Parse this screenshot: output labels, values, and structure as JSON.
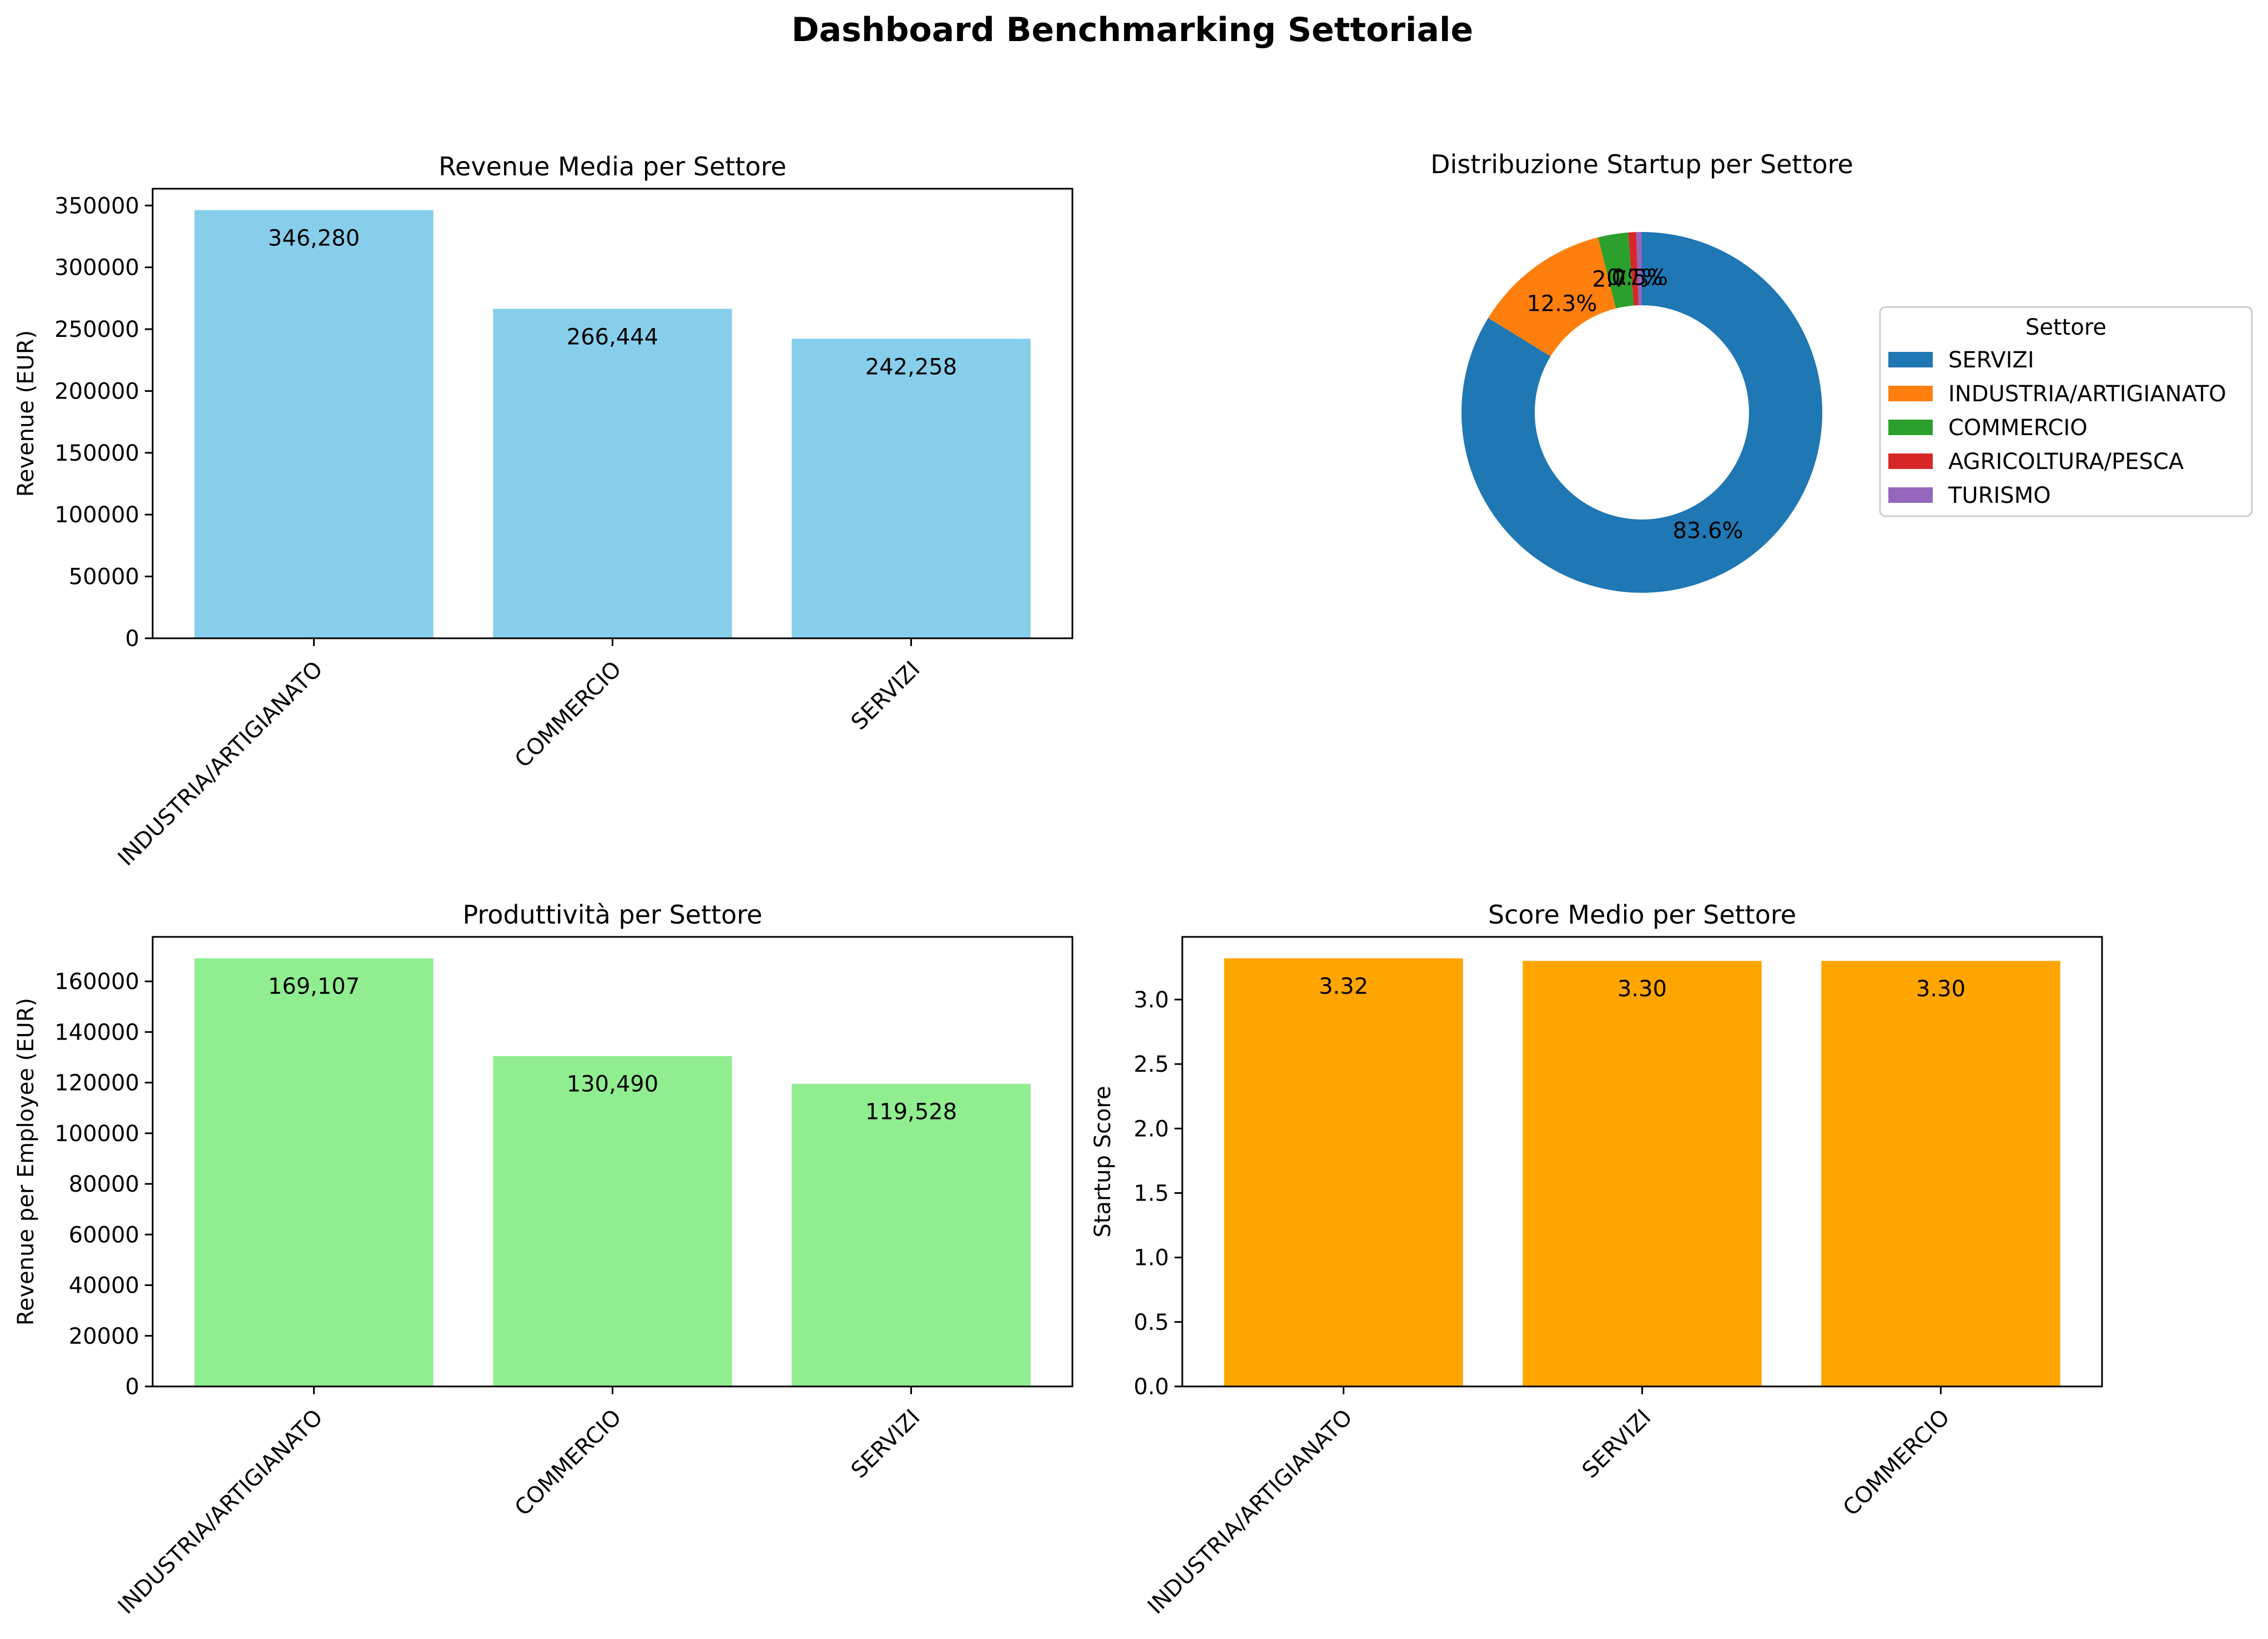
{
  "page_title": "Dashboard Benchmarking Settoriale",
  "chart_data": [
    {
      "id": "revenue",
      "type": "bar",
      "title": "Revenue Media per Settore",
      "xlabel": "",
      "ylabel": "Revenue (EUR)",
      "categories": [
        "INDUSTRIA/ARTIGIANATO",
        "COMMERCIO",
        "SERVIZI"
      ],
      "values": [
        346280,
        266444,
        242258
      ],
      "value_labels": [
        "346,280",
        "266,444",
        "242,258"
      ],
      "ylim": [
        0,
        363594
      ],
      "yticks": [
        0,
        50000,
        100000,
        150000,
        200000,
        250000,
        300000,
        350000
      ],
      "ytick_labels": [
        "0",
        "50000",
        "100000",
        "150000",
        "200000",
        "250000",
        "300000",
        "350000"
      ],
      "color": "#87ceeb",
      "grid": false
    },
    {
      "id": "distribution",
      "type": "pie",
      "donut": true,
      "title": "Distribuzione Startup per Settore",
      "legend_title": "Settore",
      "legend_position": "right",
      "labels": [
        "SERVIZI",
        "INDUSTRIA/ARTIGIANATO",
        "COMMERCIO",
        "AGRICOLTURA/PESCA",
        "TURISMO"
      ],
      "values": [
        83.6,
        12.3,
        2.7,
        0.7,
        0.5
      ],
      "value_labels": [
        "83.6%",
        "12.3%",
        "2.7%",
        "0.7%",
        "0.5%"
      ],
      "colors": [
        "#1f77b4",
        "#ff7f0e",
        "#2ca02c",
        "#d62728",
        "#9467bd"
      ]
    },
    {
      "id": "productivity",
      "type": "bar",
      "title": "Produttività per Settore",
      "xlabel": "",
      "ylabel": "Revenue per Employee (EUR)",
      "categories": [
        "INDUSTRIA/ARTIGIANATO",
        "COMMERCIO",
        "SERVIZI"
      ],
      "values": [
        169107,
        130490,
        119528
      ],
      "value_labels": [
        "169,107",
        "130,490",
        "119,528"
      ],
      "ylim": [
        0,
        177562
      ],
      "yticks": [
        0,
        20000,
        40000,
        60000,
        80000,
        100000,
        120000,
        140000,
        160000
      ],
      "ytick_labels": [
        "0",
        "20000",
        "40000",
        "60000",
        "80000",
        "100000",
        "120000",
        "140000",
        "160000"
      ],
      "color": "#90ee90",
      "grid": false
    },
    {
      "id": "score",
      "type": "bar",
      "title": "Score Medio per Settore",
      "xlabel": "",
      "ylabel": "Startup Score",
      "categories": [
        "INDUSTRIA/ARTIGIANATO",
        "SERVIZI",
        "COMMERCIO"
      ],
      "values": [
        3.32,
        3.3,
        3.3
      ],
      "value_labels": [
        "3.32",
        "3.30",
        "3.30"
      ],
      "ylim": [
        0,
        3.486
      ],
      "yticks": [
        0,
        0.5,
        1.0,
        1.5,
        2.0,
        2.5,
        3.0
      ],
      "ytick_labels": [
        "0.0",
        "0.5",
        "1.0",
        "1.5",
        "2.0",
        "2.5",
        "3.0"
      ],
      "color": "#ffa500",
      "grid": false
    }
  ]
}
